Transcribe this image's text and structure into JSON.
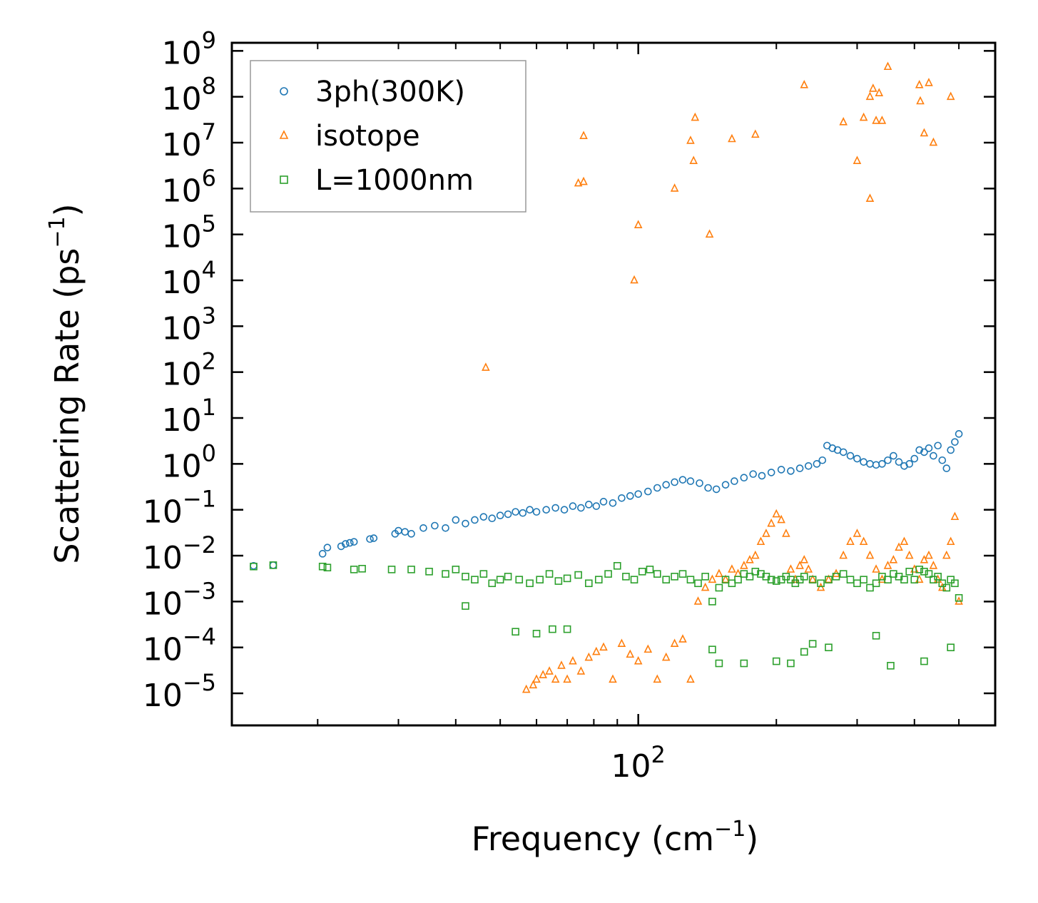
{
  "chart_data": {
    "type": "scatter",
    "title": "",
    "xlabel": "Frequency (cm",
    "xlabel_sup": "−1",
    "xlabel_end": ")",
    "ylabel": "Scattering Rate (ps",
    "ylabel_sup": "−1",
    "ylabel_end": ")",
    "xscale": "log",
    "yscale": "log",
    "xlim": [
      13,
      600
    ],
    "ylim": [
      2e-06,
      1500000000.0
    ],
    "grid": false,
    "legend_position": "top-left",
    "x_major_ticks": [
      {
        "value": 100,
        "base": "10",
        "exp": "2"
      }
    ],
    "x_minor_ticks": [
      20,
      30,
      40,
      50,
      60,
      70,
      80,
      90,
      200,
      300,
      400,
      500
    ],
    "y_ticks": [
      {
        "value": 1e-05,
        "base": "10",
        "exp": "−5"
      },
      {
        "value": 0.0001,
        "base": "10",
        "exp": "−4"
      },
      {
        "value": 0.001,
        "base": "10",
        "exp": "−3"
      },
      {
        "value": 0.01,
        "base": "10",
        "exp": "−2"
      },
      {
        "value": 0.1,
        "base": "10",
        "exp": "−1"
      },
      {
        "value": 1,
        "base": "10",
        "exp": "0"
      },
      {
        "value": 10,
        "base": "10",
        "exp": "1"
      },
      {
        "value": 100,
        "base": "10",
        "exp": "2"
      },
      {
        "value": 1000.0,
        "base": "10",
        "exp": "3"
      },
      {
        "value": 10000.0,
        "base": "10",
        "exp": "4"
      },
      {
        "value": 100000.0,
        "base": "10",
        "exp": "5"
      },
      {
        "value": 1000000.0,
        "base": "10",
        "exp": "6"
      },
      {
        "value": 10000000.0,
        "base": "10",
        "exp": "7"
      },
      {
        "value": 100000000.0,
        "base": "10",
        "exp": "8"
      },
      {
        "value": 1000000000.0,
        "base": "10",
        "exp": "9"
      }
    ],
    "series": [
      {
        "name": "3ph(300K)",
        "color": "#1f77b4",
        "marker": "circle",
        "x": [
          14.5,
          16,
          20.5,
          21,
          22.5,
          23,
          23.5,
          24,
          26,
          26.5,
          29.5,
          30,
          31,
          32,
          34,
          36,
          38,
          40,
          42,
          44,
          46,
          48,
          50,
          52,
          54,
          56,
          58,
          60,
          63,
          66,
          69,
          72,
          75,
          78,
          81,
          84,
          88,
          92,
          96,
          100,
          105,
          110,
          115,
          120,
          125,
          130,
          136,
          142,
          148,
          155,
          162,
          170,
          178,
          186,
          195,
          205,
          215,
          225,
          235,
          245,
          252,
          258,
          265,
          272,
          280,
          290,
          300,
          310,
          320,
          330,
          340,
          350,
          360,
          370,
          380,
          390,
          400,
          410,
          420,
          430,
          440,
          450,
          460,
          470,
          480,
          490,
          500
        ],
        "y": [
          0.006,
          0.0062,
          0.011,
          0.015,
          0.016,
          0.018,
          0.019,
          0.02,
          0.023,
          0.024,
          0.03,
          0.035,
          0.033,
          0.03,
          0.04,
          0.045,
          0.04,
          0.06,
          0.05,
          0.06,
          0.07,
          0.065,
          0.075,
          0.08,
          0.09,
          0.085,
          0.1,
          0.09,
          0.1,
          0.11,
          0.1,
          0.12,
          0.11,
          0.13,
          0.12,
          0.15,
          0.14,
          0.18,
          0.2,
          0.22,
          0.25,
          0.3,
          0.35,
          0.4,
          0.45,
          0.42,
          0.38,
          0.3,
          0.28,
          0.35,
          0.42,
          0.5,
          0.6,
          0.55,
          0.65,
          0.75,
          0.7,
          0.8,
          0.9,
          1.0,
          1.2,
          2.5,
          2.2,
          2.0,
          1.8,
          1.5,
          1.3,
          1.1,
          1.0,
          0.95,
          1.0,
          1.2,
          1.5,
          1.1,
          0.9,
          1.0,
          1.3,
          2.0,
          1.8,
          2.2,
          1.5,
          2.5,
          1.2,
          0.8,
          2.0,
          3.0,
          4.5
        ]
      },
      {
        "name": "isotope",
        "color": "#ff7f0e",
        "marker": "triangle",
        "x": [
          46.5,
          57,
          59,
          60,
          62,
          64,
          66,
          68,
          70,
          72,
          75,
          78,
          81,
          84,
          88,
          92,
          96,
          100,
          105,
          110,
          115,
          120,
          125,
          130,
          135,
          140,
          145,
          150,
          155,
          160,
          165,
          170,
          175,
          180,
          185,
          190,
          195,
          200,
          205,
          210,
          215,
          220,
          225,
          230,
          235,
          240,
          250,
          260,
          270,
          280,
          290,
          300,
          310,
          320,
          330,
          340,
          350,
          360,
          370,
          380,
          390,
          400,
          410,
          420,
          430,
          440,
          450,
          460,
          470,
          480,
          490,
          500,
          74,
          76,
          76,
          98,
          100,
          120,
          130,
          132,
          133,
          143,
          230,
          280,
          300,
          310,
          320,
          325,
          330,
          335,
          340,
          350,
          410,
          412,
          420,
          430,
          480,
          160,
          180,
          440,
          320
        ],
        "y": [
          125,
          1.2e-05,
          1.5e-05,
          2e-05,
          2.5e-05,
          3e-05,
          2e-05,
          4e-05,
          2e-05,
          5e-05,
          3e-05,
          6e-05,
          8e-05,
          0.0001,
          2e-05,
          0.00012,
          7e-05,
          5e-05,
          9e-05,
          2e-05,
          6e-05,
          0.00012,
          0.00015,
          2e-05,
          0.001,
          0.002,
          0.003,
          0.004,
          0.003,
          0.005,
          0.004,
          0.006,
          0.008,
          0.01,
          0.02,
          0.03,
          0.05,
          0.08,
          0.06,
          0.03,
          0.005,
          0.003,
          0.006,
          0.008,
          0.005,
          0.003,
          0.002,
          0.003,
          0.004,
          0.01,
          0.02,
          0.03,
          0.02,
          0.01,
          0.005,
          0.003,
          0.006,
          0.008,
          0.015,
          0.02,
          0.01,
          0.005,
          0.003,
          0.008,
          0.01,
          0.006,
          0.003,
          0.002,
          0.01,
          0.02,
          0.07,
          0.001,
          1300000.0,
          14000000.0,
          1400000.0,
          10000.0,
          160000.0,
          1000000.0,
          11000000.0,
          4000000.0,
          35000000.0,
          100000.0,
          180000000.0,
          28000000.0,
          4000000.0,
          35000000.0,
          100000000.0,
          150000000.0,
          30000000.0,
          120000000.0,
          30000000.0,
          450000000.0,
          180000000.0,
          80000000.0,
          16000000.0,
          200000000.0,
          100000000.0,
          12000000.0,
          15000000.0,
          10000000.0,
          600000.0
        ]
      },
      {
        "name": "L=1000nm",
        "color": "#2ca02c",
        "marker": "square",
        "x": [
          14.5,
          16,
          20.5,
          21,
          24,
          25,
          29,
          32,
          35,
          38,
          40,
          42,
          44,
          46,
          48,
          50,
          52,
          55,
          58,
          61,
          64,
          67,
          70,
          74,
          78,
          82,
          86,
          90,
          94,
          98,
          102,
          106,
          110,
          115,
          120,
          125,
          130,
          135,
          140,
          145,
          150,
          155,
          160,
          165,
          170,
          175,
          180,
          185,
          190,
          195,
          200,
          205,
          210,
          215,
          220,
          225,
          230,
          240,
          250,
          260,
          270,
          280,
          290,
          300,
          310,
          320,
          330,
          340,
          350,
          360,
          370,
          380,
          390,
          400,
          410,
          420,
          430,
          440,
          450,
          460,
          470,
          480,
          490,
          500,
          42,
          54,
          60,
          65,
          70,
          145,
          150,
          200,
          215,
          230,
          260,
          330,
          355,
          420,
          480,
          170,
          240
        ],
        "y": [
          0.0058,
          0.0062,
          0.0058,
          0.0055,
          0.005,
          0.0052,
          0.005,
          0.005,
          0.0045,
          0.004,
          0.005,
          0.0035,
          0.003,
          0.004,
          0.0025,
          0.003,
          0.0035,
          0.003,
          0.0025,
          0.003,
          0.004,
          0.0028,
          0.0032,
          0.0038,
          0.0025,
          0.003,
          0.004,
          0.006,
          0.0035,
          0.003,
          0.0045,
          0.005,
          0.004,
          0.003,
          0.0035,
          0.004,
          0.003,
          0.0025,
          0.0035,
          0.001,
          0.002,
          0.003,
          0.0025,
          0.003,
          0.004,
          0.0035,
          0.0045,
          0.004,
          0.0035,
          0.003,
          0.0028,
          0.003,
          0.0035,
          0.003,
          0.0025,
          0.003,
          0.0035,
          0.003,
          0.0025,
          0.003,
          0.0035,
          0.004,
          0.003,
          0.0025,
          0.003,
          0.002,
          0.0025,
          0.0035,
          0.003,
          0.004,
          0.0035,
          0.003,
          0.0045,
          0.003,
          0.005,
          0.0045,
          0.004,
          0.003,
          0.0035,
          0.0025,
          0.002,
          0.003,
          0.0025,
          0.0012,
          0.0008,
          0.00022,
          0.0002,
          0.00025,
          0.00025,
          9e-05,
          4.5e-05,
          5e-05,
          4.5e-05,
          8e-05,
          0.0001,
          0.00018,
          4e-05,
          5e-05,
          0.0001,
          4.5e-05,
          0.00012
        ]
      }
    ]
  }
}
